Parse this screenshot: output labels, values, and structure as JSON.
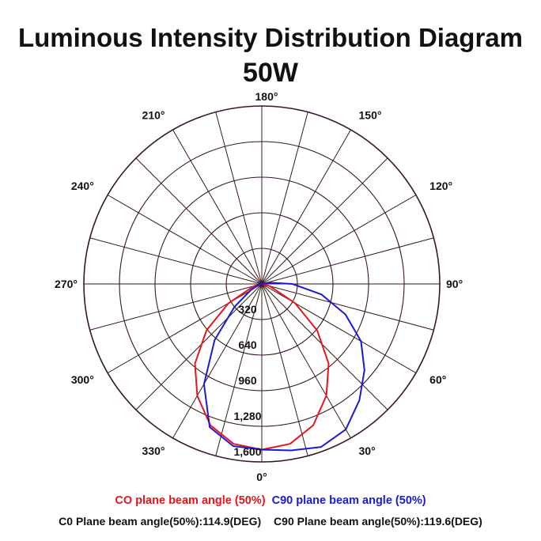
{
  "title": "Luminous Intensity Distribution Diagram",
  "subtitle": "50W",
  "colors": {
    "c0": "#e8141c",
    "c90": "#1a1ad6",
    "grid": "#3a1a1a"
  },
  "legend": {
    "c0": "CO plane beam angle (50%)",
    "c90": "C90 plane beam angle (50%)"
  },
  "notes": {
    "c0": "C0 Plane beam angle(50%):114.9(DEG)",
    "c90": "C90 Plane beam angle(50%):119.6(DEG)"
  },
  "chart_data": {
    "type": "polar",
    "angle_labels": [
      {
        "deg": 0,
        "label": "0°"
      },
      {
        "deg": 30,
        "label": "30°"
      },
      {
        "deg": 60,
        "label": "60°"
      },
      {
        "deg": 90,
        "label": "90°"
      },
      {
        "deg": 120,
        "label": "120°"
      },
      {
        "deg": 150,
        "label": "150°"
      },
      {
        "deg": 180,
        "label": "180°"
      },
      {
        "deg": 210,
        "label": "210°"
      },
      {
        "deg": 240,
        "label": "240°"
      },
      {
        "deg": 270,
        "label": "270°"
      },
      {
        "deg": 300,
        "label": "300°"
      },
      {
        "deg": 330,
        "label": "330°"
      }
    ],
    "radial_ticks": [
      {
        "value": 320,
        "label": "320"
      },
      {
        "value": 640,
        "label": "640"
      },
      {
        "value": 960,
        "label": "960"
      },
      {
        "value": 1280,
        "label": "1,280"
      },
      {
        "value": 1600,
        "label": "1,600"
      }
    ],
    "rmax": 1600,
    "series": [
      {
        "key": "c0",
        "points": [
          [
            -90,
            0
          ],
          [
            -75,
            72
          ],
          [
            -60,
            345
          ],
          [
            -50,
            650
          ],
          [
            -40,
            935
          ],
          [
            -30,
            1160
          ],
          [
            -20,
            1352
          ],
          [
            -10,
            1460
          ],
          [
            0,
            1490
          ],
          [
            10,
            1460
          ],
          [
            20,
            1352
          ],
          [
            30,
            1160
          ],
          [
            40,
            935
          ],
          [
            50,
            650
          ],
          [
            60,
            345
          ],
          [
            75,
            72
          ],
          [
            90,
            0
          ]
        ]
      },
      {
        "key": "c90",
        "points": [
          [
            -90,
            0
          ],
          [
            -75,
            35
          ],
          [
            -60,
            120
          ],
          [
            -50,
            320
          ],
          [
            -40,
            660
          ],
          [
            -30,
            1040
          ],
          [
            -20,
            1370
          ],
          [
            -10,
            1480
          ],
          [
            0,
            1490
          ],
          [
            10,
            1520
          ],
          [
            20,
            1560
          ],
          [
            30,
            1510
          ],
          [
            40,
            1365
          ],
          [
            50,
            1205
          ],
          [
            60,
            1030
          ],
          [
            70,
            800
          ],
          [
            80,
            545
          ],
          [
            90,
            275
          ],
          [
            97,
            85
          ],
          [
            100,
            0
          ]
        ]
      }
    ]
  }
}
